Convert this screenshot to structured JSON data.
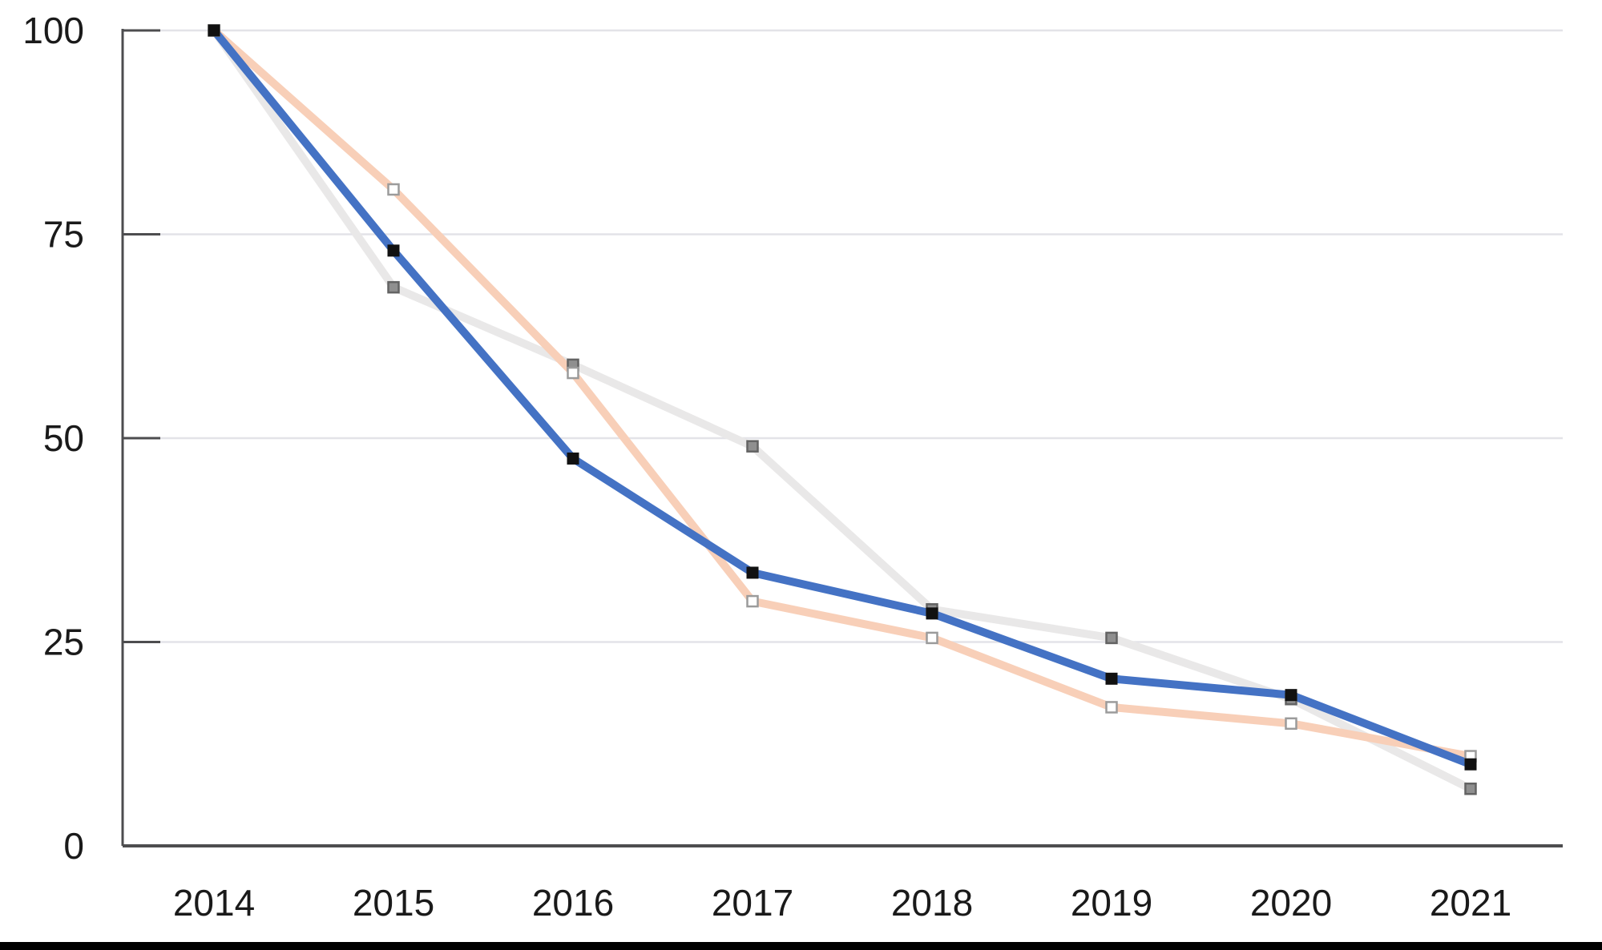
{
  "chart_data": {
    "type": "line",
    "title": "",
    "xlabel": "",
    "ylabel": "",
    "x": [
      "2014",
      "2015",
      "2016",
      "2017",
      "2018",
      "2019",
      "2020",
      "2021"
    ],
    "series": [
      {
        "name": "gray-series",
        "color": "#e9e8e8",
        "marker": "square",
        "marker_fill": "#8f8f8f",
        "marker_stroke": "#636363",
        "values": [
          100,
          68.5,
          59,
          49,
          29,
          25.5,
          18,
          7
        ]
      },
      {
        "name": "peach-series",
        "color": "#f8cfb8",
        "marker": "square",
        "marker_fill": "#ffffff",
        "marker_stroke": "#9b9b9b",
        "values": [
          100,
          80.5,
          58,
          30,
          25.5,
          17,
          15,
          11
        ]
      },
      {
        "name": "blue-series",
        "color": "#4472c4",
        "marker": "square",
        "marker_fill": "#111111",
        "marker_stroke": "none",
        "values": [
          100,
          73,
          47.5,
          33.5,
          28.5,
          20.5,
          18.5,
          10
        ]
      }
    ],
    "y_ticks": [
      0,
      25,
      50,
      75,
      100
    ],
    "ylim": [
      0,
      100
    ],
    "grid": true,
    "legend": false,
    "colors": {
      "grid_line": "#e3e3e8",
      "axis_line": "#4d4d4f",
      "tick_mark": "#4d4d4f",
      "tick_label": "#1a1a1a",
      "bottom_rule": "#000000"
    }
  }
}
